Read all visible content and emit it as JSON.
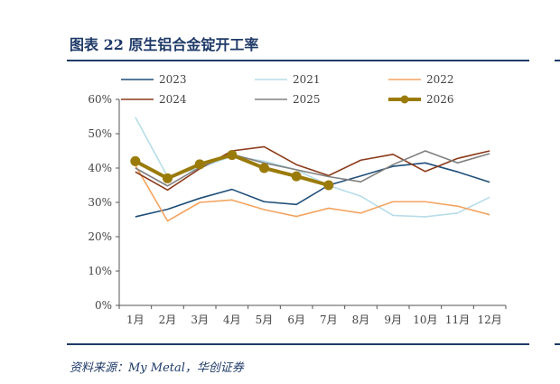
{
  "figure": {
    "title": "图表 22   原生铝合金锭开工率",
    "source": "资料来源：My Metal，华创证券"
  },
  "chart_data": {
    "type": "line",
    "x": [
      "1月",
      "2月",
      "3月",
      "4月",
      "5月",
      "6月",
      "7月",
      "8月",
      "9月",
      "10月",
      "11月",
      "12月"
    ],
    "y_ticks": [
      "0%",
      "10%",
      "20%",
      "30%",
      "40%",
      "50%",
      "60%"
    ],
    "ylim": [
      0,
      60
    ],
    "ylabel": "",
    "xlabel": "",
    "legend_position": "top",
    "series": [
      {
        "name": "2023",
        "color": "#1f4e79",
        "values": [
          25.8,
          28.0,
          31.2,
          33.8,
          30.2,
          29.4,
          35.0,
          37.7,
          40.5,
          41.5,
          38.9,
          35.9
        ]
      },
      {
        "name": "2021",
        "color": "#b7dde8",
        "values": [
          54.8,
          37.5,
          40.0,
          43.5,
          42.0,
          39.5,
          34.9,
          31.8,
          26.2,
          25.8,
          26.9,
          31.5
        ]
      },
      {
        "name": "2022",
        "color": "#f4a460",
        "values": [
          40.8,
          24.6,
          30.0,
          30.7,
          27.9,
          25.9,
          28.3,
          26.9,
          30.2,
          30.2,
          28.9,
          26.4
        ]
      },
      {
        "name": "2024",
        "color": "#8b3a1a",
        "values": [
          38.9,
          33.6,
          39.8,
          45.0,
          46.2,
          41.0,
          37.8,
          42.3,
          44.0,
          39.0,
          42.8,
          45.0
        ]
      },
      {
        "name": "2025",
        "color": "#808080",
        "values": [
          40.0,
          34.8,
          40.2,
          44.0,
          41.5,
          39.5,
          37.5,
          36.0,
          41.0,
          45.0,
          41.5,
          44.2
        ]
      },
      {
        "name": "2026",
        "color": "#9a7b0a",
        "values": [
          42.0,
          37.0,
          41.1,
          43.8,
          40.0,
          37.6,
          35.0,
          null,
          null,
          null,
          null,
          null
        ],
        "markers": true
      }
    ]
  }
}
